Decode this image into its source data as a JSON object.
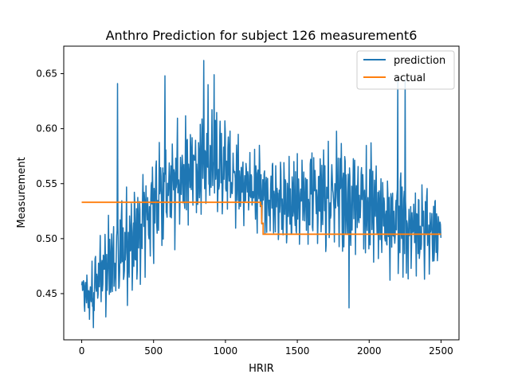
{
  "chart_data": {
    "type": "line",
    "title": "Anthro Prediction for subject 126 measurement6",
    "xlabel": "HRIR",
    "ylabel": "Measurement",
    "xlim": [
      -125,
      2625
    ],
    "ylim": [
      0.408,
      0.675
    ],
    "xticks": [
      0,
      500,
      1000,
      1500,
      2000,
      2500
    ],
    "yticks": [
      0.45,
      0.5,
      0.55,
      0.6,
      0.65
    ],
    "ytick_labels": [
      "0.45",
      "0.50",
      "0.55",
      "0.60",
      "0.65"
    ],
    "grid": false,
    "legend_position": "top-right",
    "series": [
      {
        "name": "prediction",
        "color": "#1f77b4",
        "x": [
          0,
          50,
          100,
          150,
          200,
          250,
          300,
          350,
          400,
          450,
          500,
          550,
          600,
          650,
          700,
          750,
          800,
          850,
          900,
          950,
          1000,
          1050,
          1100,
          1150,
          1200,
          1250,
          1300,
          1350,
          1400,
          1450,
          1500,
          1550,
          1600,
          1650,
          1700,
          1750,
          1800,
          1850,
          1900,
          1950,
          2000,
          2050,
          2100,
          2150,
          2200,
          2250,
          2300,
          2350,
          2400,
          2450,
          2500
        ],
        "values": [
          0.455,
          0.447,
          0.462,
          0.47,
          0.476,
          0.485,
          0.492,
          0.5,
          0.51,
          0.52,
          0.529,
          0.538,
          0.545,
          0.552,
          0.558,
          0.563,
          0.567,
          0.569,
          0.57,
          0.568,
          0.565,
          0.56,
          0.555,
          0.55,
          0.545,
          0.541,
          0.537,
          0.534,
          0.532,
          0.531,
          0.532,
          0.534,
          0.536,
          0.538,
          0.54,
          0.541,
          0.541,
          0.54,
          0.538,
          0.535,
          0.531,
          0.527,
          0.523,
          0.519,
          0.515,
          0.512,
          0.509,
          0.507,
          0.506,
          0.506,
          0.507
        ],
        "amplitude": [
          0.012,
          0.02,
          0.028,
          0.035,
          0.042,
          0.046,
          0.049,
          0.05,
          0.05,
          0.05,
          0.05,
          0.05,
          0.05,
          0.05,
          0.049,
          0.048,
          0.047,
          0.046,
          0.045,
          0.043,
          0.041,
          0.039,
          0.037,
          0.036,
          0.035,
          0.036,
          0.038,
          0.04,
          0.042,
          0.043,
          0.044,
          0.045,
          0.046,
          0.047,
          0.048,
          0.048,
          0.049,
          0.049,
          0.049,
          0.049,
          0.049,
          0.048,
          0.048,
          0.047,
          0.046,
          0.045,
          0.043,
          0.041,
          0.039,
          0.035,
          0.018
        ],
        "spikes": [
          [
            250,
            0.641
          ],
          [
            580,
            0.648
          ],
          [
            850,
            0.662
          ],
          [
            880,
            0.64
          ],
          [
            920,
            0.649
          ],
          [
            2200,
            0.643
          ],
          [
            2250,
            0.645
          ],
          [
            1860,
            0.437
          ],
          [
            80,
            0.419
          ]
        ]
      },
      {
        "name": "actual",
        "color": "#ff7f0e",
        "x": [
          0,
          1245,
          1245,
          1252,
          1252,
          1262,
          1262,
          2500
        ],
        "values": [
          0.533,
          0.533,
          0.53,
          0.53,
          0.514,
          0.514,
          0.504,
          0.504
        ]
      }
    ]
  }
}
